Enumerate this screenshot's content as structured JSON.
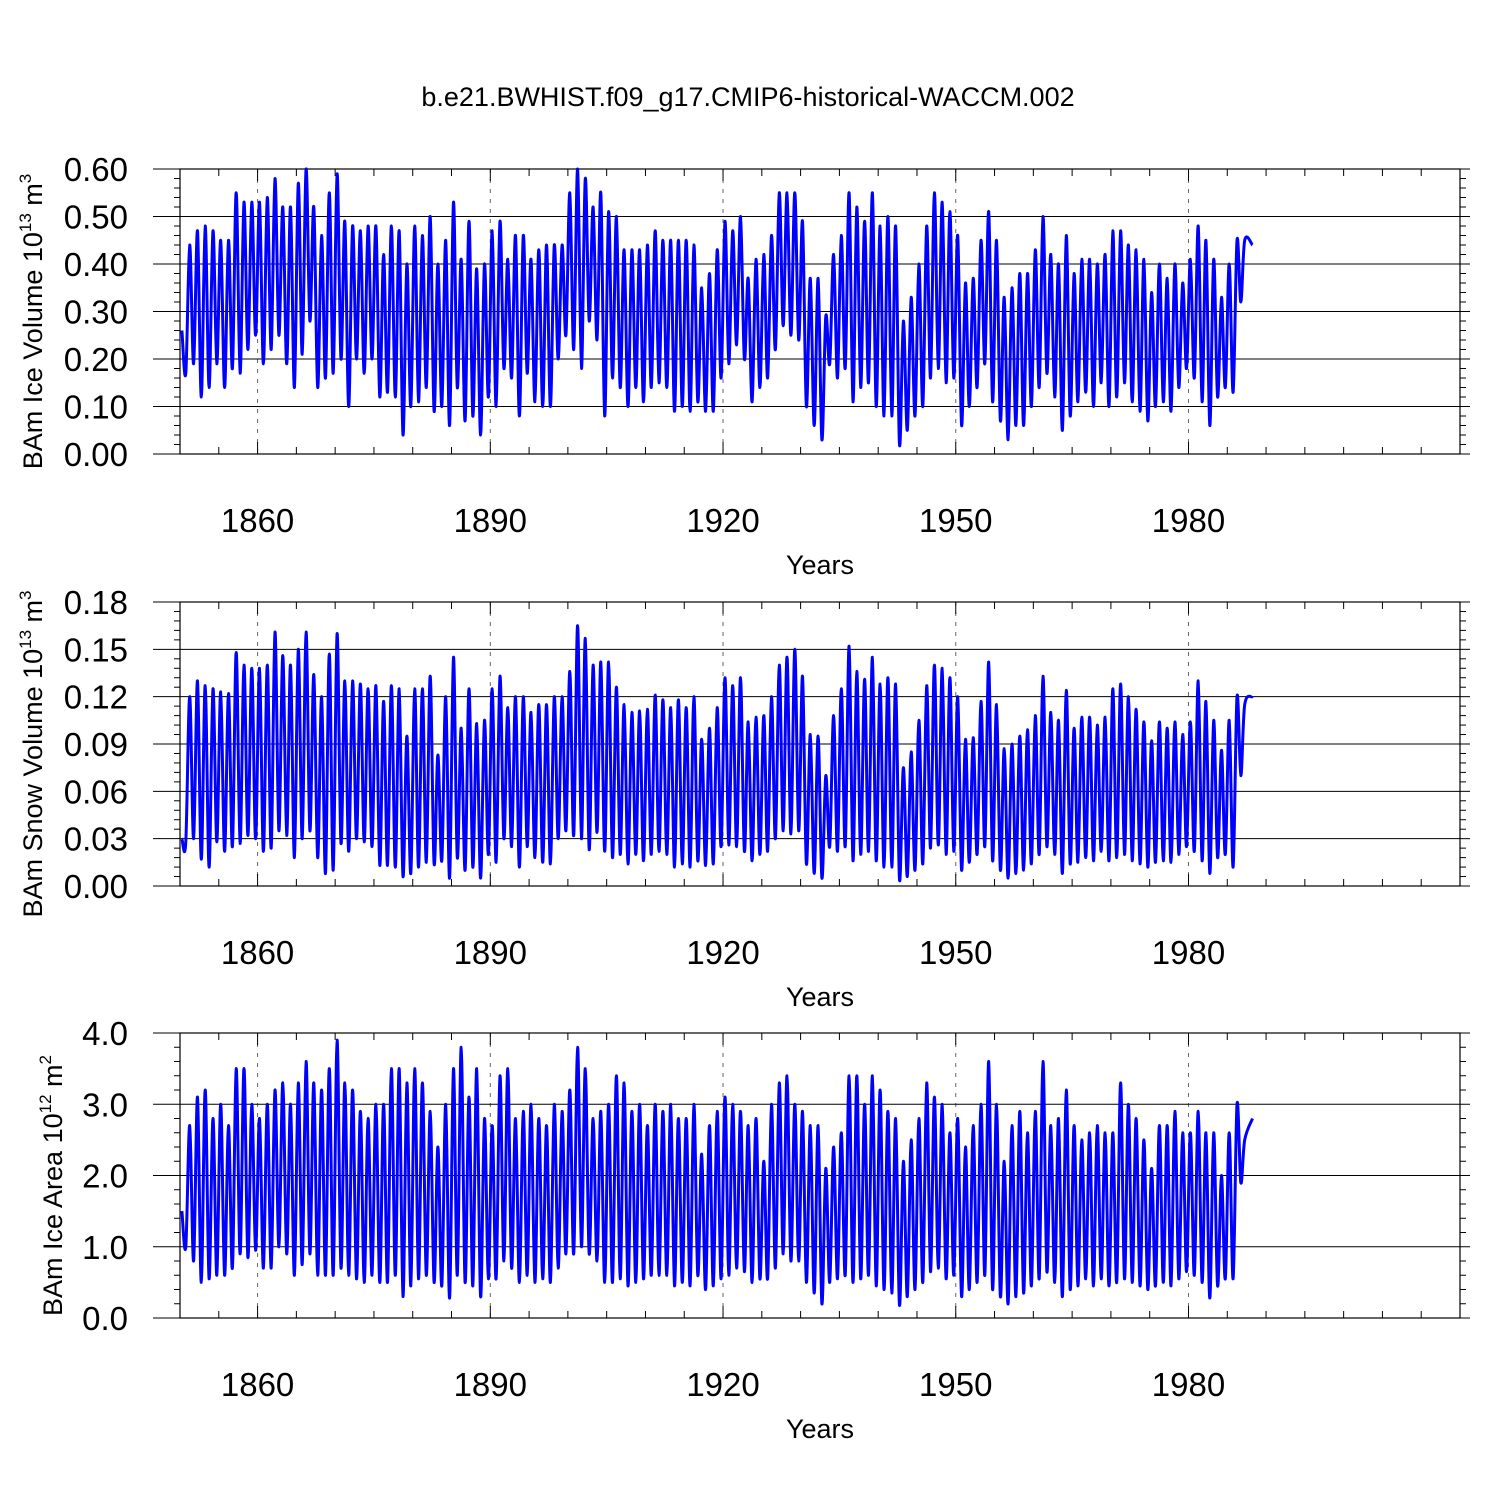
{
  "figure": {
    "title": "b.e21.BWHIST.f09_g17.CMIP6-historical-WACCM.002"
  },
  "chart_data": [
    {
      "type": "line",
      "ylabel_main": "BAm Ice Volume 10",
      "ylabel_exp": "13",
      "ylabel_unit": " m",
      "ylabel_unit_exp": "3",
      "xlabel": "Years",
      "xlim": [
        1850,
        2015
      ],
      "ylim": [
        0,
        0.6
      ],
      "yticks": [
        "0.00",
        "0.10",
        "0.20",
        "0.30",
        "0.40",
        "0.50",
        "0.60"
      ],
      "ytick_values": [
        0,
        0.1,
        0.2,
        0.3,
        0.4,
        0.5,
        0.6
      ],
      "xticks": [
        "1860",
        "1890",
        "1920",
        "1950",
        "1980"
      ],
      "xtick_values": [
        1860,
        1890,
        1920,
        1950,
        1980
      ],
      "grid_x": true,
      "color": "#0000ff",
      "series": [
        {
          "x_start": 1850,
          "peaks": [
            0.26,
            0.44,
            0.47,
            0.48,
            0.47,
            0.45,
            0.45,
            0.55,
            0.53,
            0.53,
            0.53,
            0.54,
            0.58,
            0.52,
            0.52,
            0.57,
            0.6,
            0.52,
            0.46,
            0.55,
            0.59,
            0.49,
            0.48,
            0.47,
            0.48,
            0.48,
            0.42,
            0.48,
            0.47,
            0.4,
            0.48,
            0.46,
            0.5,
            0.4,
            0.45,
            0.53,
            0.41,
            0.49,
            0.39,
            0.4,
            0.47,
            0.49,
            0.41,
            0.46,
            0.46,
            0.41,
            0.43,
            0.44,
            0.44,
            0.44,
            0.55,
            0.6,
            0.58,
            0.52,
            0.55,
            0.51,
            0.5,
            0.43,
            0.43,
            0.43,
            0.44,
            0.47,
            0.45,
            0.45,
            0.45,
            0.45,
            0.44,
            0.35,
            0.38,
            0.43,
            0.49,
            0.47,
            0.5,
            0.37,
            0.41,
            0.42,
            0.46,
            0.55,
            0.55,
            0.55,
            0.49,
            0.37,
            0.37,
            0.29,
            0.42,
            0.46,
            0.55,
            0.52,
            0.49,
            0.55,
            0.48,
            0.5,
            0.48,
            0.28,
            0.33,
            0.4,
            0.48,
            0.55,
            0.53,
            0.51,
            0.46,
            0.36,
            0.37,
            0.45,
            0.51,
            0.45,
            0.33,
            0.35,
            0.38,
            0.38,
            0.43,
            0.5,
            0.42,
            0.4,
            0.46,
            0.38,
            0.41,
            0.41,
            0.4,
            0.42,
            0.47,
            0.47,
            0.44,
            0.43,
            0.41,
            0.34,
            0.4,
            0.37,
            0.4,
            0.36,
            0.41,
            0.48,
            0.45,
            0.41,
            0.33,
            0.4,
            0.45,
            0.45,
            0.44
          ],
          "troughs": [
            0.17,
            0.19,
            0.12,
            0.14,
            0.19,
            0.14,
            0.18,
            0.17,
            0.22,
            0.25,
            0.19,
            0.22,
            0.25,
            0.19,
            0.14,
            0.21,
            0.28,
            0.14,
            0.16,
            0.17,
            0.2,
            0.1,
            0.2,
            0.17,
            0.2,
            0.12,
            0.13,
            0.12,
            0.04,
            0.1,
            0.11,
            0.14,
            0.09,
            0.1,
            0.06,
            0.14,
            0.07,
            0.08,
            0.04,
            0.12,
            0.1,
            0.18,
            0.16,
            0.08,
            0.17,
            0.11,
            0.1,
            0.1,
            0.2,
            0.25,
            0.22,
            0.18,
            0.28,
            0.24,
            0.08,
            0.16,
            0.14,
            0.1,
            0.14,
            0.11,
            0.14,
            0.15,
            0.14,
            0.09,
            0.1,
            0.09,
            0.11,
            0.09,
            0.09,
            0.16,
            0.19,
            0.23,
            0.2,
            0.11,
            0.14,
            0.16,
            0.22,
            0.27,
            0.25,
            0.24,
            0.1,
            0.06,
            0.03,
            0.19,
            0.16,
            0.18,
            0.11,
            0.14,
            0.15,
            0.1,
            0.08,
            0.08,
            0.02,
            0.05,
            0.08,
            0.1,
            0.16,
            0.18,
            0.15,
            0.16,
            0.06,
            0.1,
            0.14,
            0.19,
            0.11,
            0.07,
            0.03,
            0.06,
            0.06,
            0.1,
            0.14,
            0.17,
            0.12,
            0.05,
            0.08,
            0.11,
            0.13,
            0.1,
            0.15,
            0.1,
            0.12,
            0.15,
            0.11,
            0.09,
            0.07,
            0.1,
            0.11,
            0.09,
            0.14,
            0.18,
            0.16,
            0.11,
            0.06,
            0.12,
            0.14,
            0.13,
            0.32
          ]
        }
      ]
    },
    {
      "type": "line",
      "ylabel_main": "BAm Snow Volume 10",
      "ylabel_exp": "13",
      "ylabel_unit": " m",
      "ylabel_unit_exp": "3",
      "xlabel": "Years",
      "xlim": [
        1850,
        2015
      ],
      "ylim": [
        0,
        0.18
      ],
      "yticks": [
        "0.00",
        "0.03",
        "0.06",
        "0.09",
        "0.12",
        "0.15",
        "0.18"
      ],
      "ytick_values": [
        0,
        0.03,
        0.06,
        0.09,
        0.12,
        0.15,
        0.18
      ],
      "xticks": [
        "1860",
        "1890",
        "1920",
        "1950",
        "1980"
      ],
      "xtick_values": [
        1860,
        1890,
        1920,
        1950,
        1980
      ],
      "grid_x": true,
      "color": "#0000ff",
      "series": [
        {
          "x_start": 1850,
          "peaks": [
            0.03,
            0.12,
            0.13,
            0.127,
            0.125,
            0.123,
            0.122,
            0.148,
            0.14,
            0.138,
            0.138,
            0.14,
            0.161,
            0.146,
            0.14,
            0.15,
            0.161,
            0.134,
            0.12,
            0.147,
            0.16,
            0.13,
            0.13,
            0.128,
            0.125,
            0.127,
            0.117,
            0.127,
            0.125,
            0.095,
            0.125,
            0.125,
            0.133,
            0.083,
            0.12,
            0.145,
            0.1,
            0.125,
            0.103,
            0.105,
            0.125,
            0.133,
            0.113,
            0.12,
            0.12,
            0.11,
            0.115,
            0.115,
            0.12,
            0.12,
            0.136,
            0.165,
            0.157,
            0.14,
            0.142,
            0.142,
            0.126,
            0.115,
            0.11,
            0.111,
            0.112,
            0.121,
            0.118,
            0.113,
            0.118,
            0.113,
            0.12,
            0.093,
            0.1,
            0.113,
            0.132,
            0.127,
            0.132,
            0.104,
            0.107,
            0.108,
            0.12,
            0.14,
            0.145,
            0.15,
            0.133,
            0.096,
            0.095,
            0.07,
            0.108,
            0.125,
            0.152,
            0.136,
            0.131,
            0.145,
            0.128,
            0.132,
            0.128,
            0.075,
            0.085,
            0.105,
            0.127,
            0.14,
            0.138,
            0.132,
            0.12,
            0.093,
            0.094,
            0.117,
            0.142,
            0.115,
            0.087,
            0.09,
            0.095,
            0.099,
            0.108,
            0.133,
            0.11,
            0.105,
            0.124,
            0.1,
            0.107,
            0.107,
            0.102,
            0.107,
            0.125,
            0.128,
            0.12,
            0.112,
            0.104,
            0.092,
            0.104,
            0.1,
            0.104,
            0.096,
            0.104,
            0.13,
            0.117,
            0.105,
            0.086,
            0.105,
            0.12,
            0.115,
            0.12
          ],
          "troughs": [
            0.028,
            0.03,
            0.017,
            0.012,
            0.028,
            0.022,
            0.025,
            0.027,
            0.032,
            0.03,
            0.022,
            0.024,
            0.035,
            0.032,
            0.018,
            0.03,
            0.035,
            0.018,
            0.008,
            0.01,
            0.027,
            0.022,
            0.03,
            0.028,
            0.025,
            0.013,
            0.013,
            0.012,
            0.006,
            0.008,
            0.012,
            0.015,
            0.014,
            0.016,
            0.005,
            0.018,
            0.01,
            0.012,
            0.005,
            0.02,
            0.015,
            0.03,
            0.025,
            0.012,
            0.025,
            0.018,
            0.015,
            0.014,
            0.03,
            0.035,
            0.032,
            0.03,
            0.023,
            0.034,
            0.022,
            0.018,
            0.02,
            0.014,
            0.02,
            0.016,
            0.02,
            0.022,
            0.02,
            0.012,
            0.014,
            0.012,
            0.016,
            0.013,
            0.014,
            0.025,
            0.026,
            0.025,
            0.022,
            0.016,
            0.02,
            0.022,
            0.03,
            0.035,
            0.033,
            0.035,
            0.014,
            0.008,
            0.005,
            0.025,
            0.022,
            0.025,
            0.016,
            0.02,
            0.022,
            0.016,
            0.012,
            0.012,
            0.004,
            0.006,
            0.01,
            0.014,
            0.024,
            0.026,
            0.02,
            0.022,
            0.01,
            0.015,
            0.02,
            0.025,
            0.016,
            0.01,
            0.005,
            0.008,
            0.01,
            0.014,
            0.02,
            0.025,
            0.02,
            0.008,
            0.014,
            0.015,
            0.018,
            0.016,
            0.022,
            0.016,
            0.018,
            0.02,
            0.016,
            0.014,
            0.012,
            0.015,
            0.016,
            0.015,
            0.02,
            0.025,
            0.022,
            0.016,
            0.008,
            0.018,
            0.02,
            0.012,
            0.07
          ]
        }
      ]
    },
    {
      "type": "line",
      "ylabel_main": "BAm Ice Area 10",
      "ylabel_exp": "12",
      "ylabel_unit": " m",
      "ylabel_unit_exp": "2",
      "xlabel": "Years",
      "xlim": [
        1850,
        2015
      ],
      "ylim": [
        0,
        4
      ],
      "yticks": [
        "0.0",
        "1.0",
        "2.0",
        "3.0",
        "4.0"
      ],
      "ytick_values": [
        0,
        1,
        2,
        3,
        4
      ],
      "xticks": [
        "1860",
        "1890",
        "1920",
        "1950",
        "1980"
      ],
      "xtick_values": [
        1860,
        1890,
        1920,
        1950,
        1980
      ],
      "grid_x": true,
      "color": "#0000ff",
      "series": [
        {
          "x_start": 1850,
          "peaks": [
            1.5,
            2.7,
            3.1,
            3.2,
            2.8,
            3.0,
            2.7,
            3.5,
            3.5,
            3.0,
            2.8,
            3.0,
            3.2,
            3.3,
            3.0,
            3.3,
            3.6,
            3.3,
            3.2,
            3.5,
            3.9,
            3.3,
            3.2,
            2.9,
            2.8,
            3.0,
            3.0,
            3.5,
            3.5,
            3.3,
            3.5,
            3.3,
            2.9,
            2.4,
            3.0,
            3.5,
            3.8,
            3.1,
            3.5,
            2.8,
            2.7,
            3.4,
            3.5,
            2.8,
            2.9,
            3.0,
            2.8,
            2.7,
            3.0,
            2.9,
            3.2,
            3.8,
            3.5,
            2.8,
            2.9,
            3.0,
            3.4,
            3.3,
            2.9,
            3.0,
            2.7,
            3.0,
            2.9,
            3.0,
            2.8,
            2.8,
            3.0,
            2.3,
            2.7,
            2.9,
            3.1,
            3.0,
            2.9,
            2.7,
            2.8,
            2.2,
            3.0,
            3.3,
            3.4,
            3.0,
            2.9,
            2.7,
            2.7,
            2.1,
            2.4,
            2.6,
            3.4,
            3.4,
            3.0,
            3.4,
            3.2,
            2.9,
            2.8,
            2.2,
            2.5,
            2.8,
            3.3,
            3.1,
            3.0,
            2.6,
            2.8,
            2.4,
            2.7,
            3.0,
            3.6,
            3.0,
            2.2,
            2.7,
            2.9,
            2.6,
            2.9,
            3.6,
            2.7,
            2.8,
            3.2,
            2.7,
            2.5,
            2.6,
            2.7,
            2.6,
            2.6,
            3.3,
            3.0,
            2.8,
            2.5,
            2.1,
            2.7,
            2.7,
            2.9,
            2.6,
            2.6,
            2.9,
            2.6,
            2.6,
            2.0,
            2.6,
            3.0,
            2.5,
            2.8
          ],
          "troughs": [
            1.0,
            0.8,
            0.5,
            0.55,
            0.6,
            0.6,
            0.7,
            0.9,
            0.85,
            0.95,
            0.7,
            0.7,
            1.0,
            0.9,
            0.6,
            0.75,
            0.9,
            0.6,
            0.6,
            0.6,
            0.7,
            0.6,
            0.55,
            0.5,
            0.6,
            0.5,
            0.5,
            0.6,
            0.3,
            0.45,
            0.55,
            0.6,
            0.5,
            0.45,
            0.28,
            0.6,
            0.5,
            0.45,
            0.3,
            0.55,
            0.55,
            0.8,
            0.7,
            0.5,
            0.6,
            0.5,
            0.55,
            0.5,
            0.7,
            0.9,
            0.9,
            1.0,
            0.9,
            0.8,
            0.5,
            0.5,
            0.55,
            0.45,
            0.5,
            0.55,
            0.6,
            0.6,
            0.6,
            0.45,
            0.5,
            0.45,
            0.6,
            0.4,
            0.45,
            0.55,
            0.6,
            0.7,
            0.65,
            0.5,
            0.55,
            0.55,
            0.7,
            0.9,
            0.8,
            0.8,
            0.5,
            0.35,
            0.2,
            0.5,
            0.55,
            0.6,
            0.5,
            0.55,
            0.6,
            0.45,
            0.4,
            0.35,
            0.18,
            0.3,
            0.4,
            0.5,
            0.65,
            0.7,
            0.55,
            0.6,
            0.3,
            0.4,
            0.5,
            0.6,
            0.4,
            0.3,
            0.2,
            0.3,
            0.35,
            0.45,
            0.55,
            0.65,
            0.5,
            0.3,
            0.4,
            0.45,
            0.55,
            0.45,
            0.55,
            0.45,
            0.5,
            0.55,
            0.5,
            0.45,
            0.4,
            0.45,
            0.5,
            0.45,
            0.55,
            0.65,
            0.6,
            0.5,
            0.28,
            0.45,
            0.55,
            0.55,
            1.9
          ]
        }
      ]
    }
  ]
}
